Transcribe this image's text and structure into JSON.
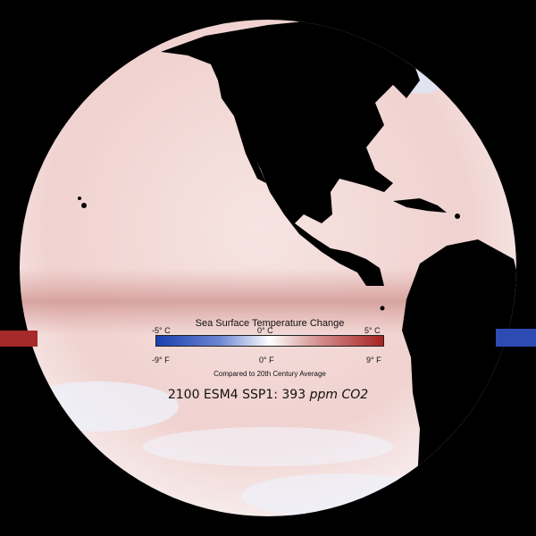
{
  "legend": {
    "title": "Sea Surface Temperature Change",
    "celsius_min": "-5° C",
    "celsius_mid": "0° C",
    "celsius_max": "5° C",
    "fahrenheit_min": "-9° F",
    "fahrenheit_mid": "0° F",
    "fahrenheit_max": "9° F",
    "footnote": "Compared to 20th Century Average"
  },
  "caption": {
    "year_model_scenario": "2100 ESM4 SSP1:",
    "co2_value": "393",
    "co2_unit": "ppm CO2"
  },
  "colors": {
    "background": "#000000",
    "land": "#000000",
    "cold": "#1a3fb0",
    "neutral": "#ffffff",
    "warm": "#a82222",
    "ocean_warm_tint": "#f1d6d4",
    "ocean_equatorial_band": "#d9a3a0"
  }
}
